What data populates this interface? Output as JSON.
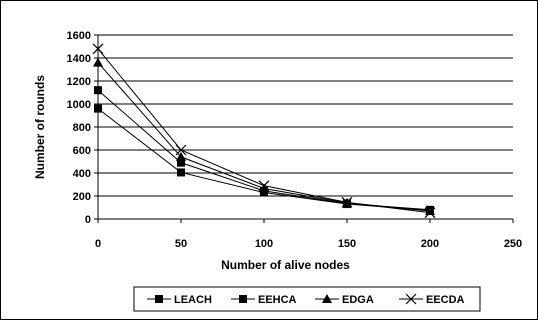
{
  "chart_data": {
    "type": "line",
    "title": "",
    "xlabel": "Number of alive nodes",
    "ylabel": "Number of rounds",
    "xlim": [
      0,
      250
    ],
    "ylim": [
      0,
      1600
    ],
    "x_ticks": [
      0,
      50,
      100,
      150,
      200,
      250
    ],
    "y_ticks": [
      0,
      200,
      400,
      600,
      800,
      1000,
      1200,
      1400,
      1600
    ],
    "grid": "horizontal",
    "legend_position": "bottom",
    "x": [
      0,
      50,
      100,
      150,
      200
    ],
    "series": [
      {
        "name": "LEACH",
        "marker": "square",
        "color": "#000000",
        "values": [
          960,
          405,
          230,
          130,
          75
        ]
      },
      {
        "name": "EEHCA",
        "marker": "square",
        "color": "#000000",
        "values": [
          1120,
          490,
          245,
          135,
          80
        ]
      },
      {
        "name": "EDGA",
        "marker": "triangle",
        "color": "#000000",
        "values": [
          1360,
          540,
          265,
          140,
          70
        ]
      },
      {
        "name": "EECDA",
        "marker": "cross",
        "color": "#000000",
        "values": [
          1480,
          600,
          290,
          145,
          55
        ]
      }
    ]
  }
}
